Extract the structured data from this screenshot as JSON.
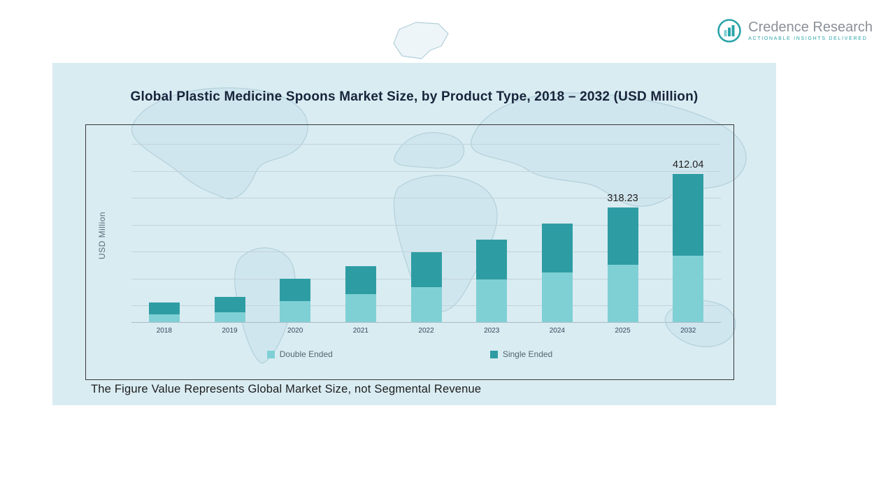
{
  "logo": {
    "name": "Credence Research",
    "tagline": "Actionable Insights Delivered"
  },
  "chart_data": {
    "type": "bar",
    "stacked": true,
    "title": "Global Plastic Medicine Spoons Market Size, by Product Type, 2018 – 2032 (USD Million)",
    "ylabel": "USD Million",
    "categories": [
      "2018",
      "2019",
      "2020",
      "2021",
      "2022",
      "2023",
      "2024",
      "2025",
      "2032"
    ],
    "series": [
      {
        "name": "Double Ended",
        "color": "#7FD0D4",
        "values": [
          22,
          28,
          58,
          78,
          98,
          118,
          138,
          160,
          185
        ]
      },
      {
        "name": "Single Ended",
        "color": "#2E9DA3",
        "values": [
          33,
          42,
          62,
          77,
          97,
          112,
          137,
          158.23,
          227.04
        ]
      }
    ],
    "totals": [
      55,
      70,
      120,
      155,
      195,
      230,
      275,
      318.23,
      412.04
    ],
    "data_labels": [
      "",
      "",
      "",
      "",
      "",
      "",
      "",
      "318.23",
      "412.04"
    ],
    "ylim": [
      0,
      550
    ],
    "grid": true,
    "legend_position": "bottom"
  },
  "footnote": "The Figure Value Represents Global Market Size, not Segmental Revenue"
}
